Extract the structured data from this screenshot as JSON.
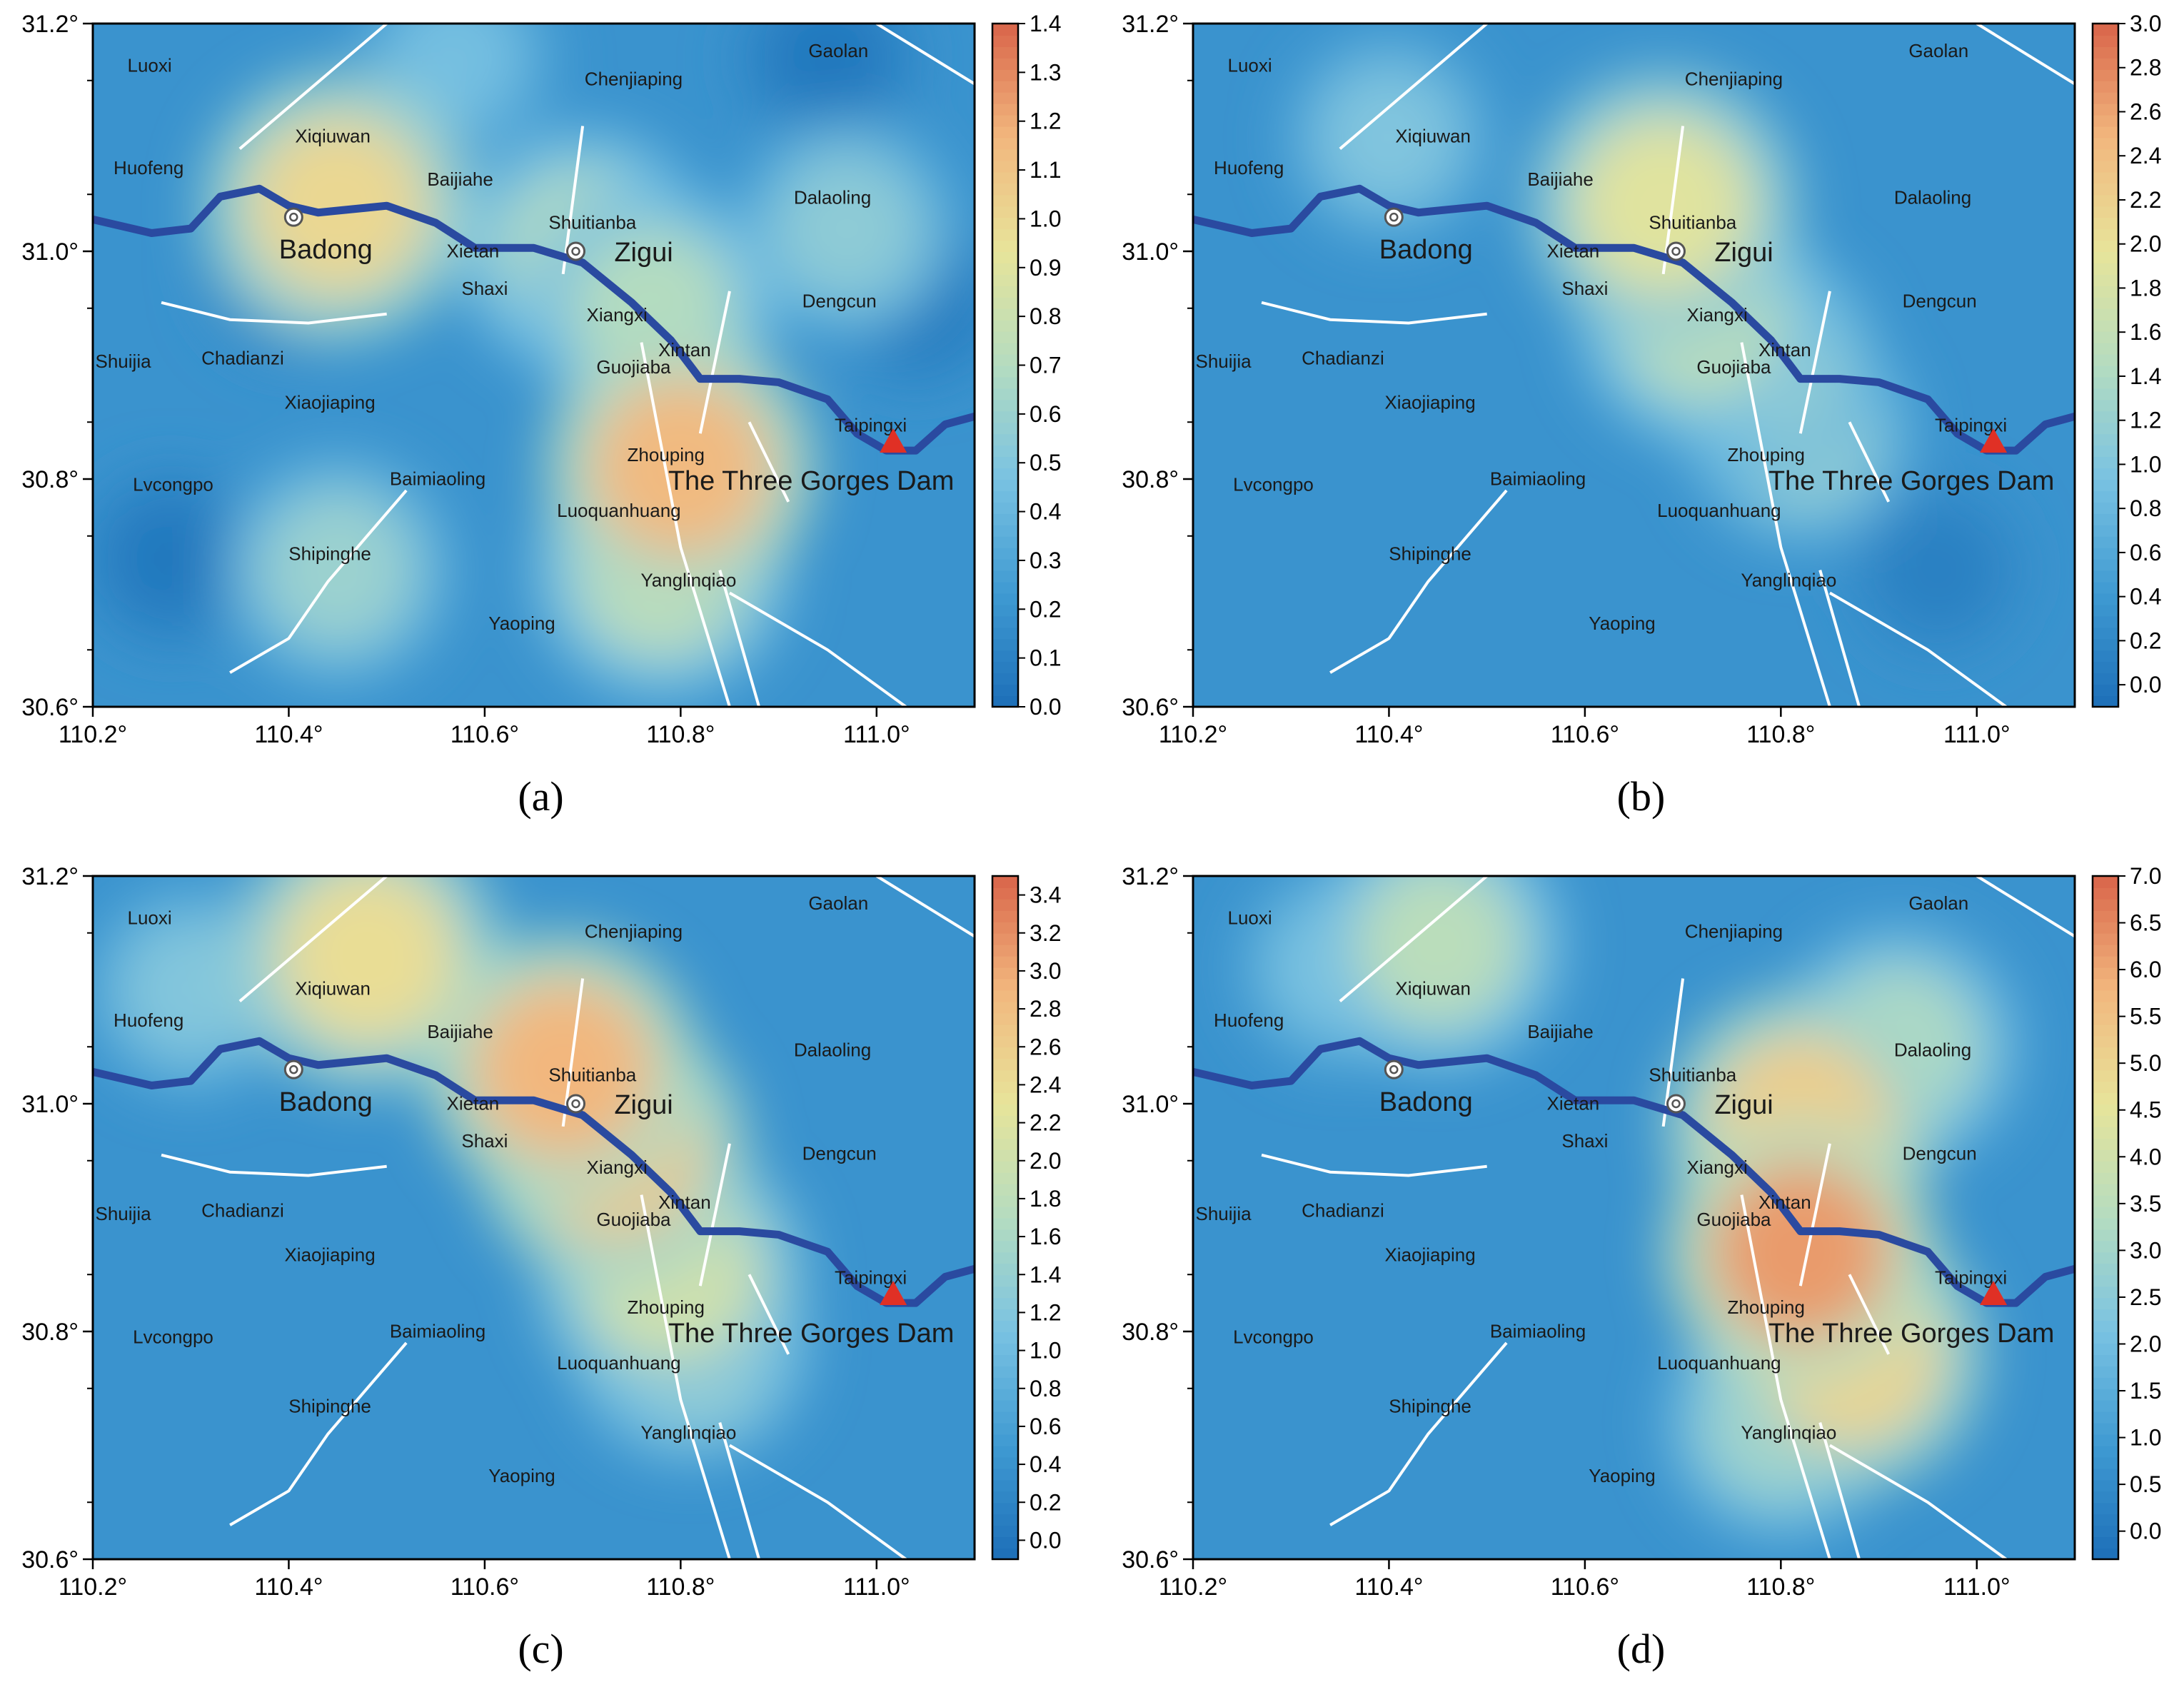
{
  "axes": {
    "x_ticks": [
      "110.2°",
      "110.4°",
      "110.6°",
      "110.8°",
      "111.0°"
    ],
    "x_values": [
      110.2,
      110.4,
      110.6,
      110.8,
      111.0
    ],
    "y_ticks": [
      "31.2°",
      "31.0°",
      "30.8°",
      "30.6°"
    ],
    "y_values": [
      31.2,
      31.0,
      30.8,
      30.6
    ],
    "x_range": [
      110.2,
      111.1
    ],
    "y_range": [
      30.6,
      31.2
    ]
  },
  "places": [
    {
      "name": "Luoxi",
      "lon": 110.258,
      "lat": 31.162
    },
    {
      "name": "Gaolan",
      "lon": 110.961,
      "lat": 31.175
    },
    {
      "name": "Chenjiaping",
      "lon": 110.752,
      "lat": 31.15
    },
    {
      "name": "Xiqiuwan",
      "lon": 110.445,
      "lat": 31.1
    },
    {
      "name": "Huofeng",
      "lon": 110.257,
      "lat": 31.072
    },
    {
      "name": "Baijiahe",
      "lon": 110.575,
      "lat": 31.062
    },
    {
      "name": "Dalaoling",
      "lon": 110.955,
      "lat": 31.046
    },
    {
      "name": "Shuitianba",
      "lon": 110.71,
      "lat": 31.024
    },
    {
      "name": "Xietan",
      "lon": 110.588,
      "lat": 30.999
    },
    {
      "name": "Shaxi",
      "lon": 110.6,
      "lat": 30.966
    },
    {
      "name": "Dengcun",
      "lon": 110.962,
      "lat": 30.955
    },
    {
      "name": "Xiangxi",
      "lon": 110.735,
      "lat": 30.943
    },
    {
      "name": "Xintan",
      "lon": 110.804,
      "lat": 30.912
    },
    {
      "name": "Shuijia",
      "lon": 110.231,
      "lat": 30.902
    },
    {
      "name": "Chadianzi",
      "lon": 110.353,
      "lat": 30.905
    },
    {
      "name": "Guojiaba",
      "lon": 110.752,
      "lat": 30.897
    },
    {
      "name": "Xiaojiaping",
      "lon": 110.442,
      "lat": 30.866
    },
    {
      "name": "Taipingxi",
      "lon": 110.994,
      "lat": 30.846
    },
    {
      "name": "Zhouping",
      "lon": 110.785,
      "lat": 30.82
    },
    {
      "name": "Lvcongpo",
      "lon": 110.282,
      "lat": 30.794
    },
    {
      "name": "Baimiaoling",
      "lon": 110.552,
      "lat": 30.799
    },
    {
      "name": "Luoquanhuang",
      "lon": 110.737,
      "lat": 30.771
    },
    {
      "name": "Shipinghe",
      "lon": 110.442,
      "lat": 30.733
    },
    {
      "name": "Yanglinqiao",
      "lon": 110.808,
      "lat": 30.71
    },
    {
      "name": "Yaoping",
      "lon": 110.638,
      "lat": 30.672
    }
  ],
  "towns": [
    {
      "name": "Badong",
      "lon": 110.405,
      "lat": 31.03
    },
    {
      "name": "Zigui",
      "lon": 110.693,
      "lat": 31.0
    }
  ],
  "dam": {
    "name": "The Three Gorges Dam",
    "lon": 111.017,
    "lat": 30.832
  },
  "colors": {
    "river": "#2a4aa0",
    "fault": "#ffffff",
    "dam_marker": "#e03025",
    "colormap": [
      "#1d6fb8",
      "#3f9ad2",
      "#79c2e2",
      "#b4dcc0",
      "#e7e49a",
      "#f2b77e",
      "#d9654a"
    ]
  },
  "panels": [
    {
      "label": "a",
      "caption": "(a)",
      "colorbar": {
        "min": 0.0,
        "max": 1.4,
        "ticks": [
          "0.0",
          "0.1",
          "0.2",
          "0.3",
          "0.4",
          "0.5",
          "0.6",
          "0.7",
          "0.8",
          "0.9",
          "1.0",
          "1.1",
          "1.2",
          "1.3",
          "1.4"
        ]
      },
      "hotspots": [
        {
          "lon": 110.45,
          "lat": 31.04,
          "value": 1.0
        },
        {
          "lon": 110.8,
          "lat": 30.81,
          "value": 1.15
        },
        {
          "lon": 110.7,
          "lat": 31.0,
          "value": 0.7
        },
        {
          "lon": 110.77,
          "lat": 30.95,
          "value": 0.7
        },
        {
          "lon": 110.78,
          "lat": 30.72,
          "value": 0.75
        },
        {
          "lon": 110.45,
          "lat": 30.72,
          "value": 0.6
        },
        {
          "lon": 110.97,
          "lat": 31.02,
          "value": 0.55
        },
        {
          "lon": 110.57,
          "lat": 31.17,
          "value": 0.45
        },
        {
          "lon": 110.95,
          "lat": 31.17,
          "value": 0.05
        },
        {
          "lon": 110.4,
          "lat": 30.98,
          "value": 0.1
        },
        {
          "lon": 111.04,
          "lat": 30.96,
          "value": 0.05
        },
        {
          "lon": 110.28,
          "lat": 30.73,
          "value": 0.05
        }
      ]
    },
    {
      "label": "b",
      "caption": "(b)",
      "colorbar": {
        "min": -0.1,
        "max": 3.0,
        "ticks": [
          "0.0",
          "0.2",
          "0.4",
          "0.6",
          "0.8",
          "1.0",
          "1.2",
          "1.4",
          "1.6",
          "1.8",
          "2.0",
          "2.2",
          "2.4",
          "2.6",
          "2.8",
          "3.0"
        ]
      },
      "hotspots": [
        {
          "lon": 110.68,
          "lat": 31.04,
          "value": 1.9
        },
        {
          "lon": 110.72,
          "lat": 30.94,
          "value": 1.5
        },
        {
          "lon": 110.82,
          "lat": 30.84,
          "value": 1.2
        },
        {
          "lon": 110.4,
          "lat": 31.1,
          "value": 1.0
        },
        {
          "lon": 110.78,
          "lat": 30.9,
          "value": 1.3
        },
        {
          "lon": 110.96,
          "lat": 30.72,
          "value": 0.1
        }
      ]
    },
    {
      "label": "c",
      "caption": "(c)",
      "colorbar": {
        "min": -0.1,
        "max": 3.5,
        "ticks": [
          "0.0",
          "0.2",
          "0.4",
          "0.6",
          "0.8",
          "1.0",
          "1.2",
          "1.4",
          "1.6",
          "1.8",
          "2.0",
          "2.2",
          "2.4",
          "2.6",
          "2.8",
          "3.0",
          "3.2",
          "3.4"
        ]
      },
      "hotspots": [
        {
          "lon": 110.48,
          "lat": 31.13,
          "value": 2.4
        },
        {
          "lon": 110.68,
          "lat": 31.03,
          "value": 2.9
        },
        {
          "lon": 110.73,
          "lat": 30.96,
          "value": 2.7
        },
        {
          "lon": 110.79,
          "lat": 30.85,
          "value": 2.0
        },
        {
          "lon": 110.81,
          "lat": 30.79,
          "value": 1.6
        },
        {
          "lon": 110.3,
          "lat": 31.1,
          "value": 1.2
        }
      ]
    },
    {
      "label": "d",
      "caption": "(d)",
      "colorbar": {
        "min": -0.3,
        "max": 7.0,
        "ticks": [
          "0.0",
          "0.5",
          "1.0",
          "1.5",
          "2.0",
          "2.5",
          "3.0",
          "3.5",
          "4.0",
          "4.5",
          "5.0",
          "5.5",
          "6.0",
          "6.5",
          "7.0"
        ]
      },
      "hotspots": [
        {
          "lon": 110.82,
          "lat": 30.87,
          "value": 6.2
        },
        {
          "lon": 110.82,
          "lat": 30.98,
          "value": 5.2
        },
        {
          "lon": 110.87,
          "lat": 30.78,
          "value": 5.0
        },
        {
          "lon": 110.45,
          "lat": 31.14,
          "value": 3.5
        },
        {
          "lon": 110.92,
          "lat": 31.05,
          "value": 3.2
        },
        {
          "lon": 110.8,
          "lat": 30.72,
          "value": 3.0
        },
        {
          "lon": 110.35,
          "lat": 31.12,
          "value": 2.2
        }
      ]
    }
  ]
}
